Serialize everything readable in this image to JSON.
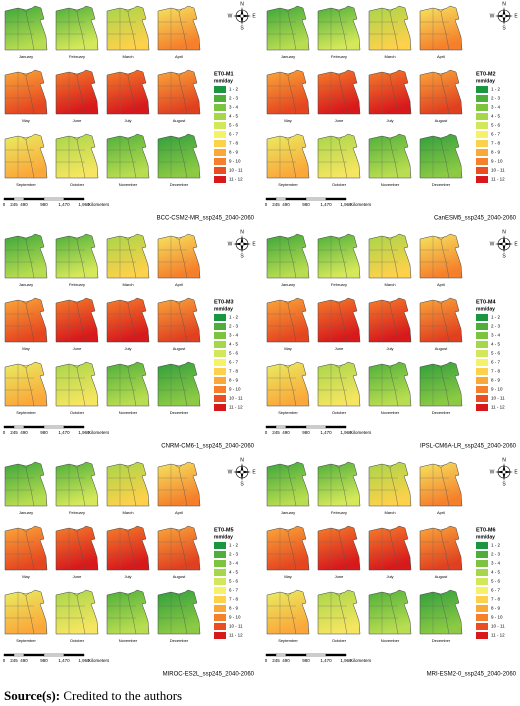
{
  "panels": [
    {
      "model": "BCC-CSM2-MR_ssp245_2040-2060",
      "legend_title": "ET0-M1"
    },
    {
      "model": "CanESM5_ssp245_2040-2060",
      "legend_title": "ET0-M2"
    },
    {
      "model": "CNRM-CM6-1_ssp245_2040-2060",
      "legend_title": "ET0-M3"
    },
    {
      "model": "IPSL-CM6A-LR_ssp245_2040-2060",
      "legend_title": "ET0-M4"
    },
    {
      "model": "MIROC-ES2L_ssp245_2040-2060",
      "legend_title": "ET0-M5"
    },
    {
      "model": "MRI-ESM2-0_ssp245_2040-2060",
      "legend_title": "ET0-M6"
    }
  ],
  "months": [
    "January",
    "February",
    "March",
    "April",
    "May",
    "June",
    "July",
    "August",
    "September",
    "October",
    "November",
    "December"
  ],
  "unit": "mm/day",
  "classes": [
    "1 - 2",
    "2 - 3",
    "3 - 4",
    "4 - 5",
    "5 - 6",
    "6 - 7",
    "7 - 8",
    "8 - 9",
    "9 - 10",
    "10 - 11",
    "11 - 12"
  ],
  "class_colors": [
    "#1a9641",
    "#4daf3a",
    "#7cc43f",
    "#a6d64a",
    "#d2e85a",
    "#f5f26a",
    "#fdd14a",
    "#fba83a",
    "#f57f2b",
    "#ea4d22",
    "#d7191c"
  ],
  "scale": {
    "ticks": [
      "0",
      "245",
      "490",
      "980",
      "1,470",
      "1,960"
    ],
    "unit": "Kilometers"
  },
  "compass": {
    "n": "N",
    "e": "E",
    "s": "S",
    "w": "W"
  },
  "source": {
    "label": "Source(s):",
    "text": "Credited to the authors"
  }
}
